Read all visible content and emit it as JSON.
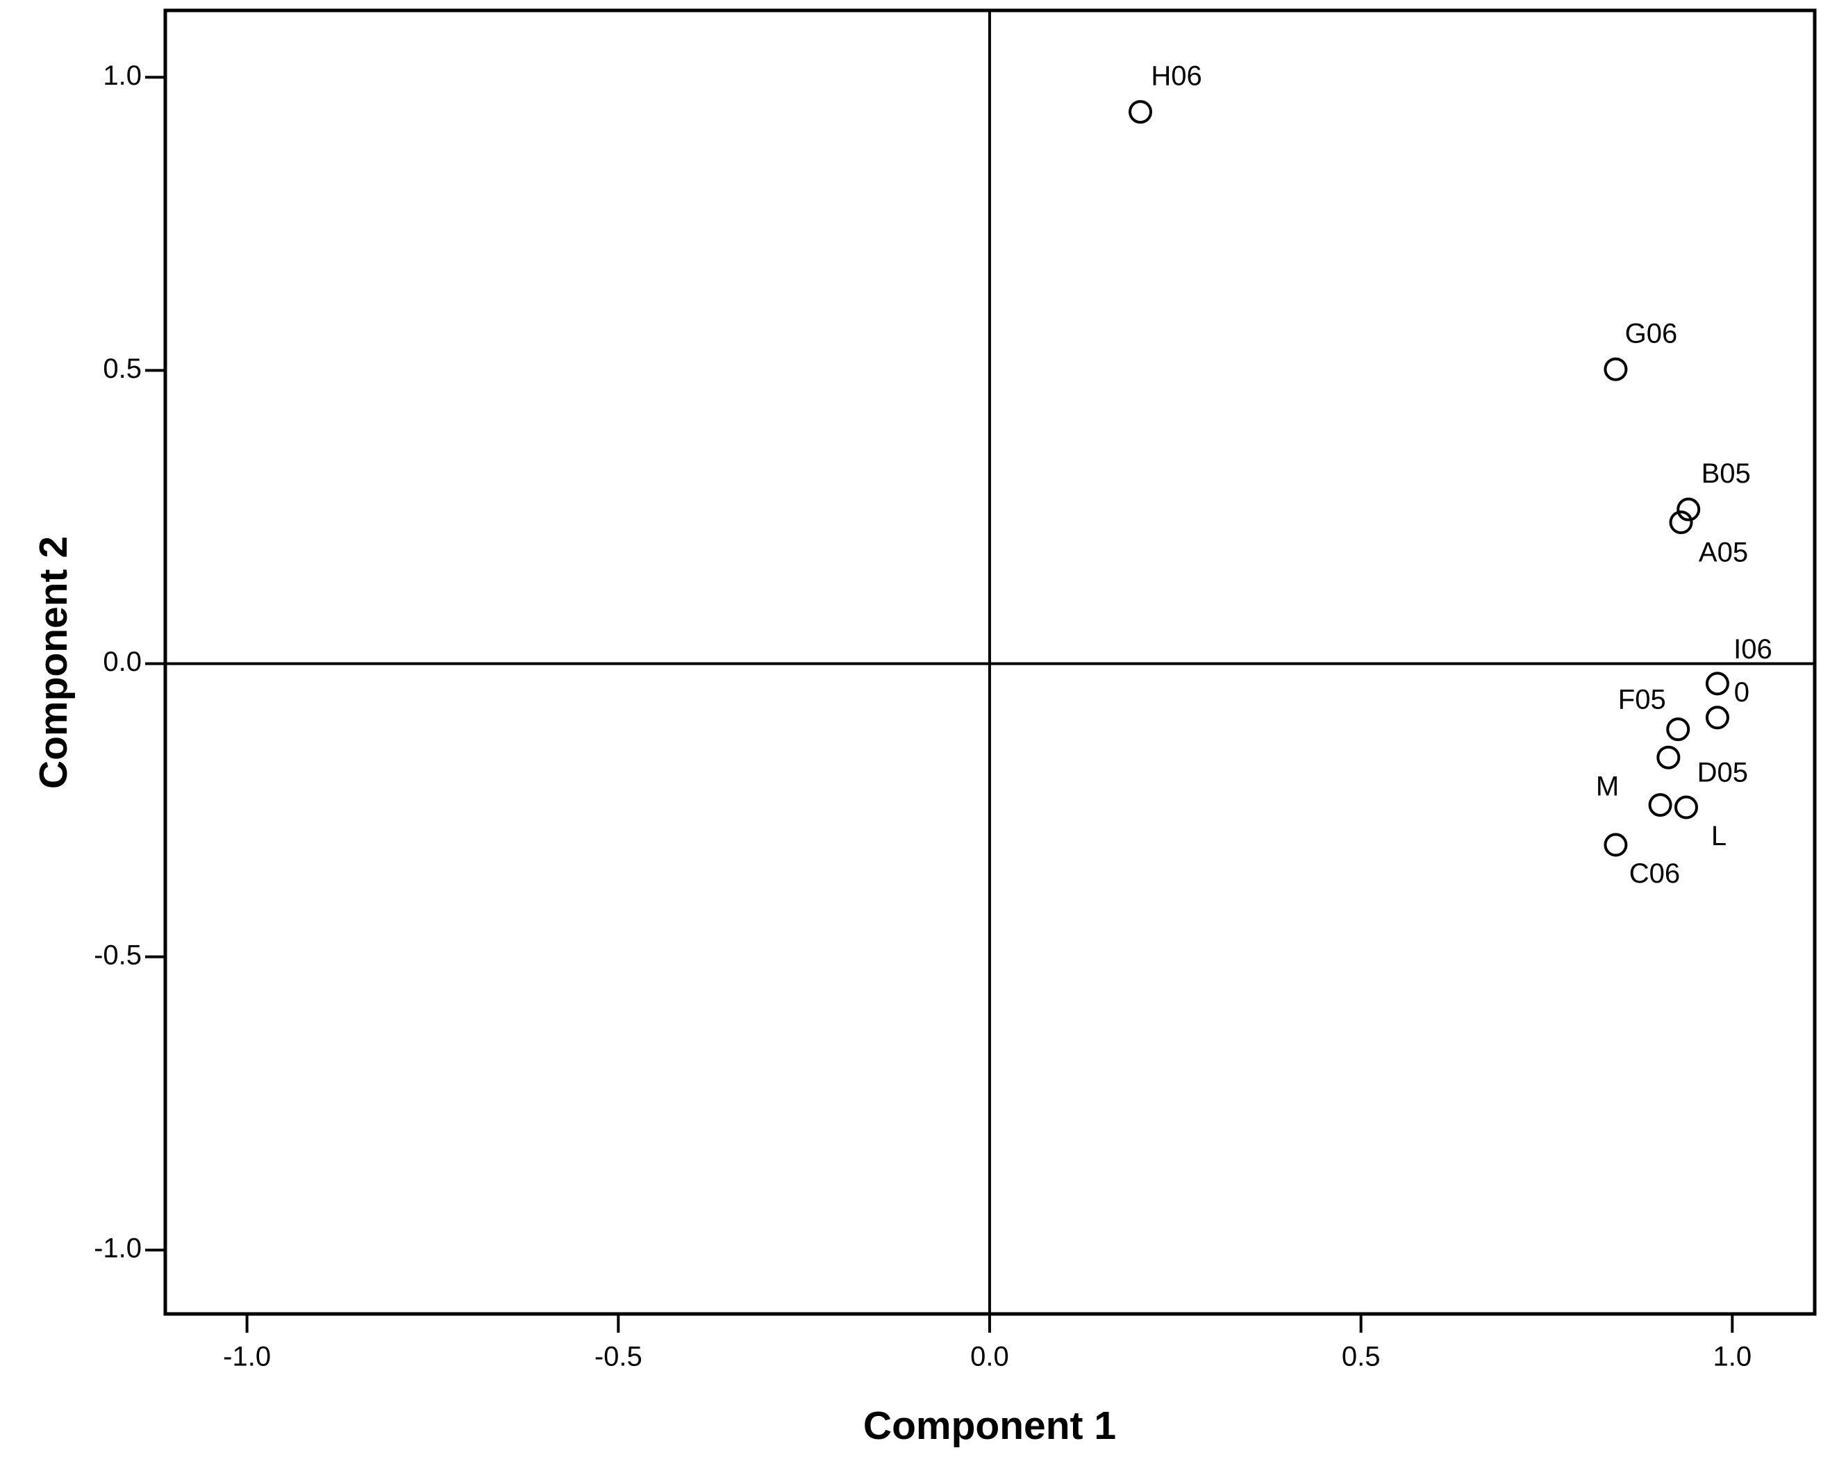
{
  "chart_data": {
    "type": "scatter",
    "x_label": "Component 1",
    "y_label": "Component 2",
    "point_labels": [
      "H06",
      "G06",
      "B05",
      "A05",
      "I06",
      "0",
      "F05",
      "D05",
      "M",
      "L",
      "C06"
    ],
    "x": [
      0.203,
      0.843,
      0.941,
      0.931,
      0.98,
      0.98,
      0.927,
      0.914,
      0.903,
      0.938,
      0.843
    ],
    "values": [
      0.941,
      0.502,
      0.263,
      0.241,
      -0.034,
      -0.092,
      -0.112,
      -0.16,
      -0.241,
      -0.245,
      -0.309
    ],
    "xlim": [
      -1.11,
      1.111
    ],
    "ylim": [
      -1.109,
      1.114
    ],
    "xticks": [
      {
        "value": -1.0,
        "label": "-1.0"
      },
      {
        "value": -0.5,
        "label": "-0.5"
      },
      {
        "value": 0,
        "label": "0.0"
      },
      {
        "value": 0.5,
        "label": "0.5"
      },
      {
        "value": 1.0,
        "label": "1.0"
      }
    ],
    "yticks": [
      {
        "value": -1.0,
        "label": "-1.0"
      },
      {
        "value": -0.5,
        "label": "-0.5"
      },
      {
        "value": 0,
        "label": "0.0"
      },
      {
        "value": 0.5,
        "label": "0.5"
      },
      {
        "value": 1.0,
        "label": "1.0"
      }
    ],
    "reference_lines": true
  }
}
